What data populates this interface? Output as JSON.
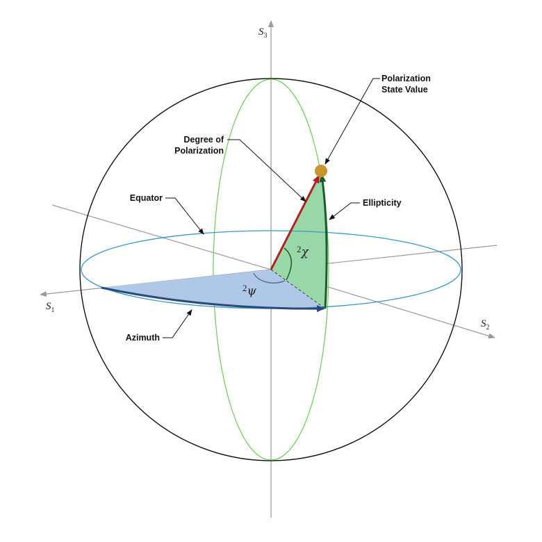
{
  "axes": {
    "s1": {
      "letter": "S",
      "subscript": "1"
    },
    "s2": {
      "letter": "S",
      "subscript": "2"
    },
    "s3": {
      "letter": "S",
      "subscript": "3"
    }
  },
  "labels": {
    "polarization_state_line1": "Polarization",
    "polarization_state_line2": "State Value",
    "degree_line1": "Degree of",
    "degree_line2": "Polarization",
    "equator": "Equator",
    "ellipticity": "Ellipticity",
    "azimuth": "Azimuth"
  },
  "angles": {
    "chi_factor": "2",
    "chi_symbol": "χ",
    "psi_factor": "2",
    "psi_symbol": "ψ"
  },
  "colors": {
    "sphere": "#111111",
    "axes": "#999999",
    "meridian": "#66cc55",
    "equator": "#3399cc",
    "azimuth_fill": "#b0c8e8",
    "azimuth_arrow": "#2a4a7a",
    "ellipticity_fill": "#98d8a8",
    "ellipticity_arrow": "#1e5a30",
    "polarization_vector": "#b3201f",
    "state_point": "#c9952e"
  }
}
